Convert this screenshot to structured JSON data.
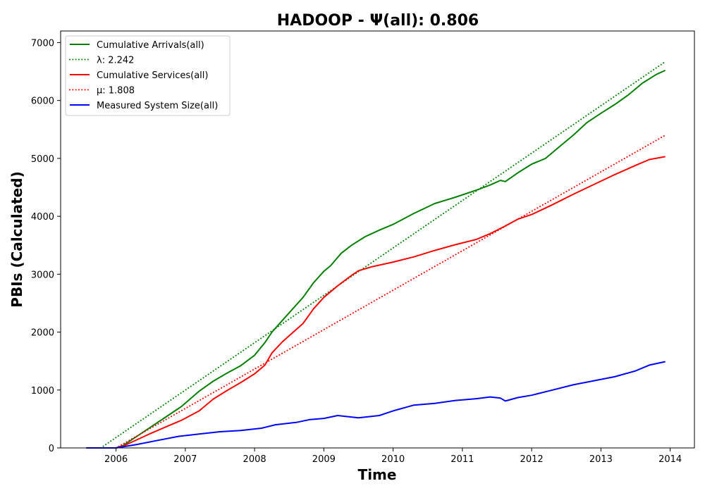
{
  "chart_data": {
    "type": "line",
    "title": "HADOOP -  Ψ(all): 0.806",
    "xlabel": "Time",
    "ylabel": "PBIs (Calculated)",
    "xlim": [
      2005.2,
      2014.35
    ],
    "ylim": [
      0,
      7200
    ],
    "xticks": [
      2006,
      2007,
      2008,
      2009,
      2010,
      2011,
      2012,
      2013,
      2014
    ],
    "yticks": [
      0,
      1000,
      2000,
      3000,
      4000,
      5000,
      6000,
      7000
    ],
    "grid": false,
    "legend_position": "upper-left",
    "series": [
      {
        "name": "Cumulative Arrivals(all)",
        "color": "#008000",
        "style": "solid",
        "x": [
          2005.57,
          2005.8,
          2006.0,
          2006.1,
          2006.3,
          2006.5,
          2006.75,
          2006.95,
          2007.2,
          2007.4,
          2007.6,
          2007.8,
          2008.0,
          2008.15,
          2008.25,
          2008.4,
          2008.55,
          2008.7,
          2008.85,
          2009.0,
          2009.1,
          2009.25,
          2009.4,
          2009.6,
          2009.8,
          2010.0,
          2010.3,
          2010.6,
          2010.9,
          2011.2,
          2011.4,
          2011.55,
          2011.62,
          2011.8,
          2012.0,
          2012.2,
          2012.4,
          2012.6,
          2012.8,
          2013.0,
          2013.2,
          2013.4,
          2013.6,
          2013.8,
          2013.93
        ],
        "y": [
          0,
          0,
          0,
          40,
          200,
          360,
          560,
          720,
          980,
          1150,
          1290,
          1420,
          1600,
          1820,
          2000,
          2200,
          2400,
          2600,
          2850,
          3050,
          3150,
          3360,
          3500,
          3650,
          3760,
          3860,
          4050,
          4220,
          4330,
          4450,
          4540,
          4620,
          4600,
          4750,
          4900,
          5000,
          5200,
          5400,
          5620,
          5780,
          5930,
          6100,
          6300,
          6450,
          6520
        ]
      },
      {
        "name": "λ: 2.242",
        "color": "#008000",
        "style": "dotted",
        "x": [
          2005.78,
          2013.93
        ],
        "y": [
          0,
          6670
        ]
      },
      {
        "name": "Cumulative Services(all)",
        "color": "#ff0000",
        "style": "solid",
        "x": [
          2005.57,
          2006.0,
          2006.1,
          2006.3,
          2006.5,
          2006.75,
          2006.95,
          2007.2,
          2007.4,
          2007.6,
          2007.8,
          2008.0,
          2008.15,
          2008.25,
          2008.4,
          2008.55,
          2008.7,
          2008.85,
          2009.0,
          2009.2,
          2009.4,
          2009.5,
          2009.7,
          2010.0,
          2010.3,
          2010.6,
          2010.9,
          2011.2,
          2011.4,
          2011.6,
          2011.8,
          2012.0,
          2012.3,
          2012.6,
          2012.9,
          2013.2,
          2013.5,
          2013.7,
          2013.93
        ],
        "y": [
          0,
          0,
          30,
          140,
          250,
          380,
          480,
          640,
          840,
          990,
          1130,
          1280,
          1430,
          1640,
          1830,
          1990,
          2150,
          2400,
          2600,
          2800,
          2980,
          3060,
          3130,
          3210,
          3300,
          3410,
          3510,
          3600,
          3700,
          3820,
          3950,
          4030,
          4200,
          4380,
          4550,
          4720,
          4880,
          4980,
          5030
        ]
      },
      {
        "name": "μ: 1.808",
        "color": "#ff0000",
        "style": "dotted",
        "x": [
          2006.0,
          2013.93
        ],
        "y": [
          0,
          5400
        ]
      },
      {
        "name": "Measured System Size(all)",
        "color": "#0000ff",
        "style": "solid",
        "x": [
          2005.57,
          2006.0,
          2006.3,
          2006.6,
          2006.9,
          2007.2,
          2007.5,
          2007.8,
          2008.1,
          2008.3,
          2008.6,
          2008.8,
          2009.0,
          2009.2,
          2009.5,
          2009.8,
          2010.0,
          2010.3,
          2010.6,
          2010.9,
          2011.2,
          2011.4,
          2011.55,
          2011.62,
          2011.8,
          2012.0,
          2012.3,
          2012.6,
          2012.9,
          2013.2,
          2013.5,
          2013.7,
          2013.93
        ],
        "y": [
          0,
          0,
          60,
          130,
          200,
          240,
          280,
          300,
          340,
          400,
          440,
          490,
          510,
          560,
          520,
          560,
          640,
          740,
          770,
          820,
          850,
          880,
          860,
          810,
          870,
          910,
          1000,
          1090,
          1160,
          1230,
          1330,
          1430,
          1490
        ]
      }
    ]
  }
}
